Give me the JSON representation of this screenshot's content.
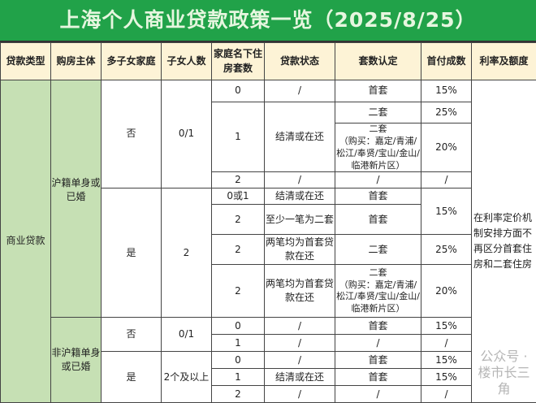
{
  "title": "上海个人商业贷款政策一览（2025/8/25）",
  "headers": [
    "贷款类型",
    "购房主体",
    "多子女家庭",
    "子女人数",
    "家庭名下住房套数",
    "贷款状态",
    "套数认定",
    "首付成数",
    "利率及额度"
  ],
  "loan_type": "商业贷款",
  "buyer": {
    "local": "沪籍单身或已婚",
    "nonlocal": "非沪籍单身或已婚"
  },
  "rate_note": "在利率定价机制安排方面不再区分首套住房和二套住房",
  "rows": [
    {
      "multi": "否",
      "kids": "0/1",
      "homes": "0",
      "status": "/",
      "level": "首套",
      "down": "15%"
    },
    {
      "homes": "1",
      "status": "结清或在还",
      "level": "二套",
      "down": "25%"
    },
    {
      "level": "二套",
      "level_note": "（购买：嘉定/青浦/松江/奉贤/宝山/金山/临港新片区）",
      "down": "20%"
    },
    {
      "homes": "2",
      "status": "/",
      "level": "/",
      "down": "/"
    },
    {
      "multi": "是",
      "kids": "2",
      "homes": "0或1",
      "status": "结清或在还",
      "level": "首套",
      "down": "15%"
    },
    {
      "homes": "2",
      "status": "至少一笔为二套",
      "level": "首套"
    },
    {
      "homes": "2",
      "status": "两笔均为首套贷款在还",
      "level": "二套",
      "down": "25%"
    },
    {
      "homes": "2",
      "status": "两笔均为首套贷款在还",
      "level": "二套",
      "level_note": "（购买：嘉定/青浦/松江/奉贤/宝山/金山/临港新片区）",
      "down": "20%"
    },
    {
      "multi": "否",
      "kids": "0/1",
      "homes": "0",
      "status": "/",
      "level": "首套",
      "down": "15%"
    },
    {
      "homes": "1",
      "status": "/",
      "level": "/",
      "down": "/"
    },
    {
      "multi": "是",
      "kids": "2个及以上",
      "homes": "0",
      "status": "/",
      "level": "首套",
      "down": "15%"
    },
    {
      "homes": "1",
      "status": "结清或在还",
      "level": "首套",
      "down": "15%"
    },
    {
      "homes": "2",
      "status": "/",
      "level": "/",
      "down": "/"
    }
  ],
  "watermark": "公众号 · 楼市长三角"
}
